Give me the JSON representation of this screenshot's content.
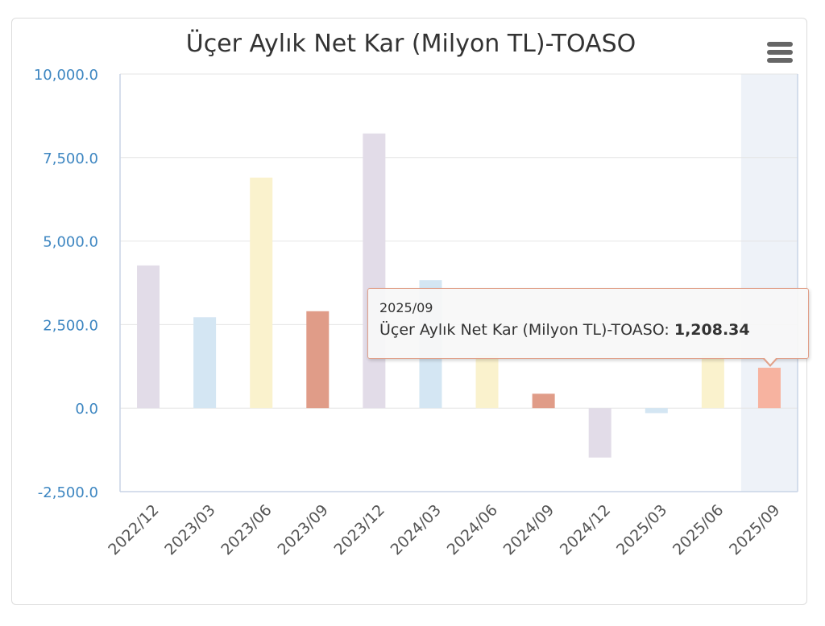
{
  "chart_data": {
    "type": "bar",
    "title": "Üçer Aylık Net Kar (Milyon TL)-TOASO",
    "xlabel": "",
    "ylabel": "",
    "ylim": [
      -2500,
      10000
    ],
    "yticks": [
      "10,000.0",
      "7,500.0",
      "5,000.0",
      "2,500.0",
      "0.0",
      "-2,500.0"
    ],
    "ytick_values": [
      10000,
      7500,
      5000,
      2500,
      0,
      -2500
    ],
    "grid": true,
    "legend": "none",
    "categories": [
      "2022/12",
      "2023/03",
      "2023/06",
      "2023/09",
      "2023/12",
      "2024/03",
      "2024/06",
      "2024/09",
      "2024/12",
      "2025/03",
      "2025/06",
      "2025/09"
    ],
    "values": [
      4270,
      2720,
      6900,
      2900,
      8220,
      3830,
      1600,
      430,
      -1480,
      -150,
      1600,
      1208.34
    ],
    "bar_colors": [
      "#e2dce8",
      "#d4e6f3",
      "#faf2cd",
      "#e09c88",
      "#e2dce8",
      "#d4e6f3",
      "#faf2cd",
      "#e09c88",
      "#e2dce8",
      "#d4e6f3",
      "#faf2cd",
      "#f7b3a0"
    ],
    "highlight_index": 11,
    "highlight_band_color": "#eef2f8",
    "tooltip": {
      "category": "2025/09",
      "series_label": "Üçer Aylık Net Kar (Milyon TL)-TOASO: ",
      "value": "1,208.34"
    }
  },
  "colors": {
    "axis_label": "#3d86c1",
    "grid": "#e4e4e4",
    "title": "#333333"
  },
  "menu_icon": "hamburger-menu-icon"
}
